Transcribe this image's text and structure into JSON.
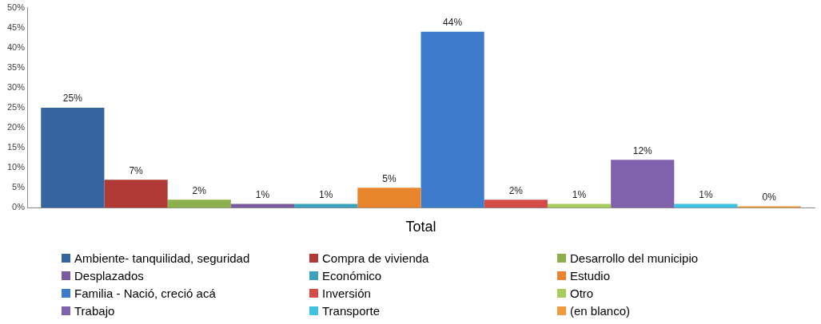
{
  "chart_data": {
    "type": "bar",
    "categories": [
      "Total"
    ],
    "series": [
      {
        "name": "Ambiente- tanquilidad, seguridad",
        "color": "#35659f",
        "values": [
          25
        ],
        "value_labels": [
          "25%"
        ]
      },
      {
        "name": "Compra de vivienda",
        "color": "#b13a36",
        "values": [
          7
        ],
        "value_labels": [
          "7%"
        ]
      },
      {
        "name": "Desarrollo del municipio",
        "color": "#8cb04c",
        "values": [
          2
        ],
        "value_labels": [
          "2%"
        ]
      },
      {
        "name": "Desplazados",
        "color": "#7b5aa0",
        "values": [
          1
        ],
        "value_labels": [
          "1%"
        ]
      },
      {
        "name": "Económico",
        "color": "#3aa2bf",
        "values": [
          1
        ],
        "value_labels": [
          "1%"
        ]
      },
      {
        "name": "Estudio",
        "color": "#e8842c",
        "values": [
          5
        ],
        "value_labels": [
          "5%"
        ]
      },
      {
        "name": "Familia - Nació, creció acá",
        "color": "#3d7ccc",
        "values": [
          44
        ],
        "value_labels": [
          "44%"
        ]
      },
      {
        "name": "Inversión",
        "color": "#d34c48",
        "values": [
          2
        ],
        "value_labels": [
          "2%"
        ]
      },
      {
        "name": "Otro",
        "color": "#a6cd5a",
        "values": [
          1
        ],
        "value_labels": [
          "1%"
        ]
      },
      {
        "name": "Trabajo",
        "color": "#8062ac",
        "values": [
          12
        ],
        "value_labels": [
          "12%"
        ]
      },
      {
        "name": "Transporte",
        "color": "#3ec4e2",
        "values": [
          1
        ],
        "value_labels": [
          "1%"
        ]
      },
      {
        "name": "(en blanco)",
        "color": "#f29b3c",
        "values": [
          0
        ],
        "value_labels": [
          "0%"
        ]
      }
    ],
    "ylim": [
      0,
      50
    ],
    "yticks": [
      {
        "value": 0,
        "label": "0%"
      },
      {
        "value": 5,
        "label": "5%"
      },
      {
        "value": 10,
        "label": "10%"
      },
      {
        "value": 15,
        "label": "15%"
      },
      {
        "value": 20,
        "label": "20%"
      },
      {
        "value": 25,
        "label": "25%"
      },
      {
        "value": 30,
        "label": "30%"
      },
      {
        "value": 35,
        "label": "35%"
      },
      {
        "value": 40,
        "label": "40%"
      },
      {
        "value": 45,
        "label": "45%"
      },
      {
        "value": 50,
        "label": "50%"
      }
    ],
    "legend": "bottom"
  }
}
